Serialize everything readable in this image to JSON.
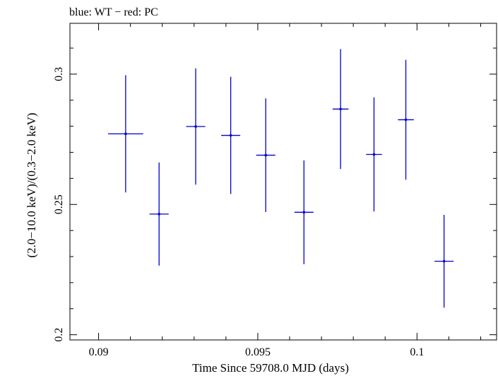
{
  "chart_data": {
    "type": "scatter",
    "title": "blue: WT − red: PC",
    "xlabel": "Time Since 59708.0 MJD (days)",
    "ylabel": "(2.0−10.0 keV)/(0.3−2.0 keV)",
    "xlim": [
      0.0891,
      0.1025
    ],
    "ylim": [
      0.198,
      0.3195
    ],
    "x_ticks": [
      {
        "value": 0.09,
        "label": "0.09"
      },
      {
        "value": 0.095,
        "label": "0.095"
      },
      {
        "value": 0.1,
        "label": "0.1"
      }
    ],
    "y_ticks": [
      {
        "value": 0.2,
        "label": "0.2"
      },
      {
        "value": 0.25,
        "label": "0.25"
      },
      {
        "value": 0.3,
        "label": "0.3"
      }
    ],
    "x_minor_step": 0.001,
    "y_minor_step": 0.01,
    "grid": false,
    "series": [
      {
        "color": "#0000cc",
        "points": [
          {
            "x": 0.09085,
            "xerr": 0.00055,
            "y": 0.2771,
            "yerr": 0.0225
          },
          {
            "x": 0.0919,
            "xerr": 0.0003,
            "y": 0.2463,
            "yerr": 0.0198
          },
          {
            "x": 0.09305,
            "xerr": 0.0003,
            "y": 0.2799,
            "yerr": 0.0223
          },
          {
            "x": 0.09415,
            "xerr": 0.0003,
            "y": 0.2765,
            "yerr": 0.0225
          },
          {
            "x": 0.09525,
            "xerr": 0.0003,
            "y": 0.2689,
            "yerr": 0.0218
          },
          {
            "x": 0.09645,
            "xerr": 0.0003,
            "y": 0.247,
            "yerr": 0.0199
          },
          {
            "x": 0.0976,
            "xerr": 0.00025,
            "y": 0.2866,
            "yerr": 0.023
          },
          {
            "x": 0.09865,
            "xerr": 0.00025,
            "y": 0.2692,
            "yerr": 0.0219
          },
          {
            "x": 0.09965,
            "xerr": 0.00025,
            "y": 0.2825,
            "yerr": 0.023
          },
          {
            "x": 0.10085,
            "xerr": 0.0003,
            "y": 0.2282,
            "yerr": 0.0178
          }
        ]
      }
    ]
  }
}
